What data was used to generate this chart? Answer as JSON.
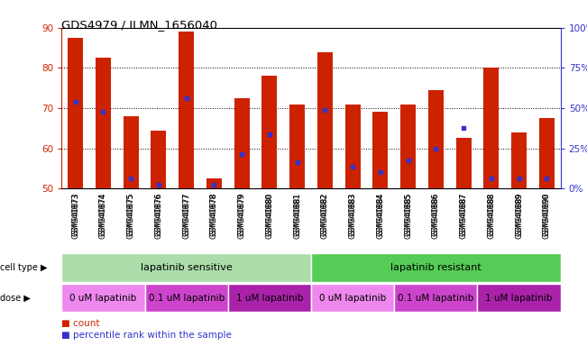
{
  "title": "GDS4979 / ILMN_1656040",
  "samples": [
    "GSM940873",
    "GSM940874",
    "GSM940875",
    "GSM940876",
    "GSM940877",
    "GSM940878",
    "GSM940879",
    "GSM940880",
    "GSM940881",
    "GSM940882",
    "GSM940883",
    "GSM940884",
    "GSM940885",
    "GSM940886",
    "GSM940887",
    "GSM940888",
    "GSM940889",
    "GSM940890"
  ],
  "bar_heights": [
    87.5,
    82.5,
    68.0,
    64.5,
    89.0,
    52.5,
    72.5,
    78.0,
    71.0,
    84.0,
    71.0,
    69.0,
    71.0,
    74.5,
    62.5,
    80.0,
    64.0,
    67.5
  ],
  "blue_dot_positions": [
    71.5,
    69.0,
    52.5,
    51.0,
    72.5,
    51.0,
    58.5,
    63.5,
    56.5,
    69.5,
    55.5,
    54.0,
    57.0,
    60.0,
    65.0,
    52.5,
    52.5,
    52.5
  ],
  "ylim_left": [
    50,
    90
  ],
  "ylim_right": [
    0,
    100
  ],
  "yticks_left": [
    50,
    60,
    70,
    80,
    90
  ],
  "yticks_right": [
    0,
    25,
    50,
    75,
    100
  ],
  "ytick_labels_right": [
    "0%",
    "25%",
    "50%",
    "75%",
    "100%"
  ],
  "bar_color": "#cc2200",
  "dot_color": "#3333cc",
  "bg_color": "#d8d8d8",
  "cell_type_groups": [
    {
      "label": "lapatinib sensitive",
      "start": 0,
      "end": 9,
      "color": "#aaddaa"
    },
    {
      "label": "lapatinib resistant",
      "start": 9,
      "end": 18,
      "color": "#55cc55"
    }
  ],
  "dose_groups": [
    {
      "label": "0 uM lapatinib",
      "start": 0,
      "end": 3,
      "color": "#ee88ee"
    },
    {
      "label": "0.1 uM lapatinib",
      "start": 3,
      "end": 6,
      "color": "#cc44cc"
    },
    {
      "label": "1 uM lapatinib",
      "start": 6,
      "end": 9,
      "color": "#aa22aa"
    },
    {
      "label": "0 uM lapatinib",
      "start": 9,
      "end": 12,
      "color": "#ee88ee"
    },
    {
      "label": "0.1 uM lapatinib",
      "start": 12,
      "end": 15,
      "color": "#cc44cc"
    },
    {
      "label": "1 uM lapatinib",
      "start": 15,
      "end": 18,
      "color": "#aa22aa"
    }
  ],
  "legend_count_color": "#cc2200",
  "legend_dot_color": "#3333cc",
  "axis_color_left": "#cc2200",
  "axis_color_right": "#3333cc",
  "bar_width": 0.55,
  "figsize": [
    6.51,
    3.84
  ],
  "dpi": 100
}
